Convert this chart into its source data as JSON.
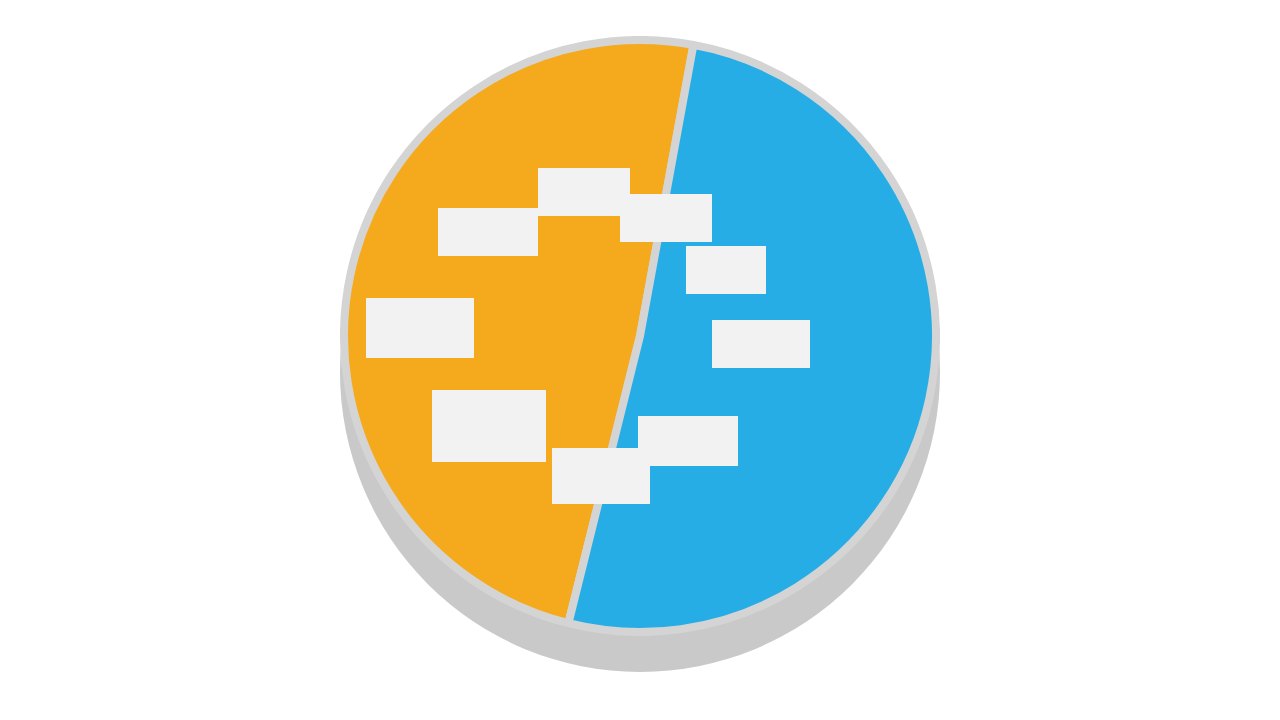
{
  "chart_data": {
    "type": "pie",
    "categories": [
      null,
      null
    ],
    "values": [
      49,
      51
    ],
    "colors": [
      "#f5a91d",
      "#27ade6"
    ],
    "legend": false
  }
}
